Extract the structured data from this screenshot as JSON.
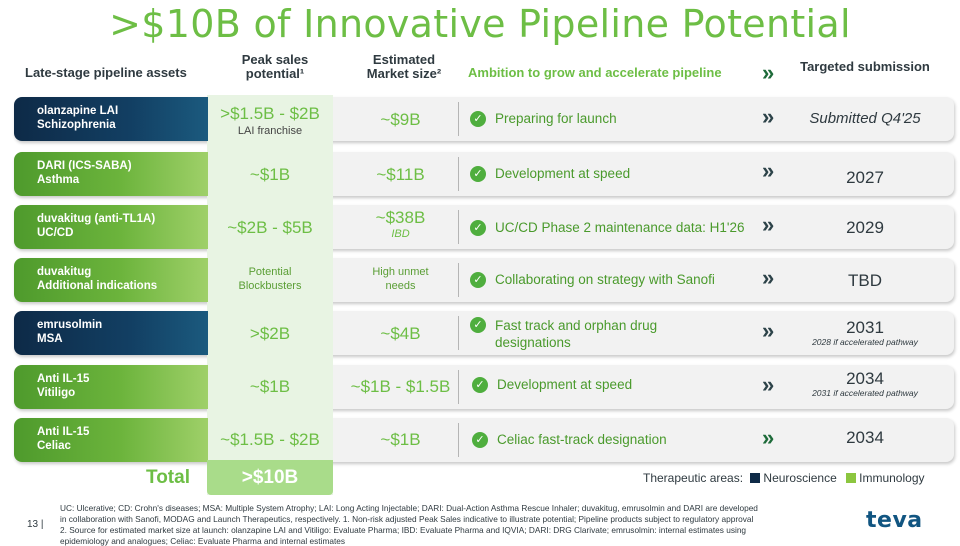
{
  "title": ">$10B of Innovative Pipeline Potential",
  "headers": {
    "assets": "Late-stage pipeline assets",
    "peak_line1": "Peak sales",
    "peak_line2": "potential¹",
    "market_line1": "Estimated",
    "market_line2": "Market size²",
    "ambition": "Ambition to grow and accelerate pipeline",
    "chevron": "»",
    "target": "Targeted submission"
  },
  "colors": {
    "title_green": "#6dbe45",
    "neuroscience": "#0e2a47",
    "immunology": "#8cc63f",
    "chevron_green": "#1e6b3a"
  },
  "rows": [
    {
      "asset_name": "olanzapine LAI",
      "indication": "Schizophrenia",
      "area": "neuroscience",
      "peak": ">$1.5B - $2B",
      "peak_sub": "LAI franchise",
      "market": "~$9B",
      "market_sub": "",
      "ambition": "Preparing for launch",
      "chevron": "»",
      "target": "Submitted Q4'25",
      "target_note": ""
    },
    {
      "asset_name": "DARI (ICS-SABA)",
      "indication": "Asthma",
      "area": "immunology",
      "peak": "~$1B",
      "peak_sub": "",
      "market": "~$11B",
      "market_sub": "",
      "ambition": "Development at speed",
      "chevron": "»",
      "target": "2027",
      "target_note": ""
    },
    {
      "asset_name": "duvakitug (anti-TL1A)",
      "indication": "UC/CD",
      "area": "immunology",
      "peak": "~$2B - $5B",
      "peak_sub": "",
      "market": "~$38B",
      "market_sub": "IBD",
      "ambition": "UC/CD Phase 2 maintenance data: H1'26",
      "chevron": "»",
      "target": "2029",
      "target_note": ""
    },
    {
      "asset_name": "duvakitug",
      "indication": "Additional indications",
      "area": "immunology",
      "peak_line1": "Potential",
      "peak_line2": "Blockbusters",
      "market_line1": "High unmet",
      "market_line2": "needs",
      "ambition": "Collaborating on strategy with Sanofi",
      "chevron": "»",
      "target": "TBD",
      "target_note": ""
    },
    {
      "asset_name": "emrusolmin",
      "indication": "MSA",
      "area": "neuroscience",
      "peak": ">$2B",
      "peak_sub": "",
      "market": "~$4B",
      "market_sub": "",
      "ambition_line1": "Fast track and orphan drug",
      "ambition_line2": "designations",
      "chevron": "»",
      "target": "2031",
      "target_note": "2028 if accelerated pathway"
    },
    {
      "asset_name": "Anti IL-15",
      "indication": "Vitiligo",
      "area": "immunology",
      "peak": "~$1B",
      "peak_sub": "",
      "market": "~$1B - $1.5B",
      "market_sub": "",
      "ambition": "Development at speed",
      "chevron": "»",
      "target": "2034",
      "target_note": "2031 if accelerated pathway"
    },
    {
      "asset_name": "Anti IL-15",
      "indication": "Celiac",
      "area": "immunology",
      "peak": "~$1.5B - $2B",
      "peak_sub": "",
      "market": "~$1B",
      "market_sub": "",
      "ambition": "Celiac fast-track designation",
      "chevron": "»",
      "target": "2034",
      "target_note": ""
    }
  ],
  "check_glyph": "✓",
  "total": {
    "label": "Total",
    "value": ">$10B"
  },
  "legend": {
    "label": "Therapeutic areas:",
    "neuro": "Neuroscience",
    "immuno": "Immunology"
  },
  "footnote_line1": "UC: Ulcerative; CD: Crohn's diseases; MSA: Multiple System Atrophy; LAI: Long Acting Injectable; DARI: Dual-Action Asthma Rescue Inhaler; duvakitug, emrusolmin and DARI are developed",
  "footnote_line2": "in collaboration with Sanofi, MODAG and Launch Therapeutics, respectively. 1. Non-risk adjusted Peak Sales indicative to illustrate potential; Pipeline products subject to regulatory approval",
  "footnote_line3": "2. Source for estimated market size at launch: olanzapine LAI and Vitiligo: Evaluate Pharma; IBD: Evaluate Pharma and IQVIA; DARI: DRG Clarivate; emrusolmin: internal estimates using",
  "footnote_line4": "epidemiology and analogues; Celiac: Evaluate Pharma and internal estimates",
  "page_number": "13 |",
  "logo": "teva"
}
